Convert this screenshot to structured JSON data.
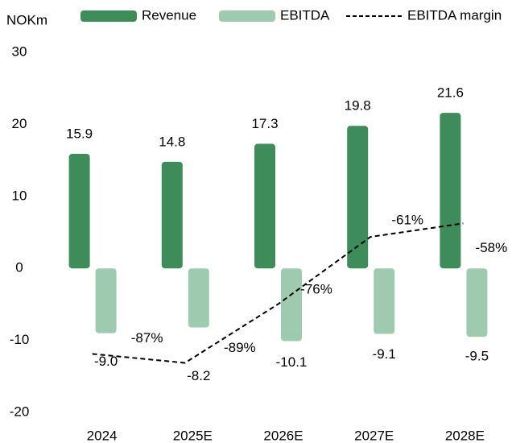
{
  "chart_data": {
    "type": "bar",
    "y_axis_label": "NOKm",
    "categories": [
      "2024",
      "2025E",
      "2026E",
      "2027E",
      "2028E"
    ],
    "series": [
      {
        "name": "Revenue",
        "color": "#3d8c5a",
        "values": [
          15.9,
          14.8,
          17.3,
          19.8,
          21.6
        ]
      },
      {
        "name": "EBITDA",
        "color": "#9ecbaf",
        "values": [
          -9.0,
          -8.2,
          -10.1,
          -9.1,
          -9.5
        ],
        "value_labels": [
          "-9.0",
          "-8.2",
          "-10.1",
          "-9.1",
          "-9.5"
        ]
      },
      {
        "name": "EBITDA margin",
        "type": "line",
        "axis": "y2",
        "color": "#000000",
        "dashed": true,
        "values": [
          -87,
          -89,
          -76,
          -61,
          -58
        ],
        "value_labels": [
          "-87%",
          "-89%",
          "-76%",
          "-61%",
          "-58%"
        ]
      }
    ],
    "ylim": [
      -20,
      30
    ],
    "yticks": [
      -20,
      -10,
      0,
      10,
      20,
      30
    ],
    "y2lim": [
      -100,
      -20
    ],
    "grid": false,
    "legend": "top"
  }
}
